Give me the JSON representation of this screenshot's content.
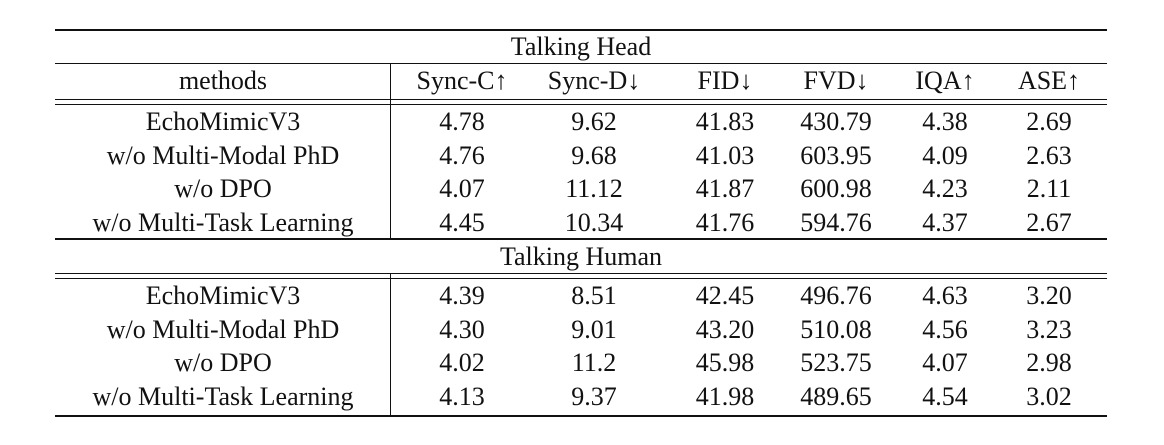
{
  "table": {
    "header": [
      "methods",
      "Sync-C↑",
      "Sync-D↓",
      "FID↓",
      "FVD↓",
      "IQA↑",
      "ASE↑"
    ],
    "sections": [
      {
        "title": "Talking Head",
        "rows": [
          [
            "EchoMimicV3",
            "4.78",
            "9.62",
            "41.83",
            "430.79",
            "4.38",
            "2.69"
          ],
          [
            "w/o Multi-Modal PhD",
            "4.76",
            "9.68",
            "41.03",
            "603.95",
            "4.09",
            "2.63"
          ],
          [
            "w/o DPO",
            "4.07",
            "11.12",
            "41.87",
            "600.98",
            "4.23",
            "2.11"
          ],
          [
            "w/o Multi-Task Learning",
            "4.45",
            "10.34",
            "41.76",
            "594.76",
            "4.37",
            "2.67"
          ]
        ]
      },
      {
        "title": "Talking Human",
        "rows": [
          [
            "EchoMimicV3",
            "4.39",
            "8.51",
            "42.45",
            "496.76",
            "4.63",
            "3.20"
          ],
          [
            "w/o Multi-Modal PhD",
            "4.30",
            "9.01",
            "43.20",
            "510.08",
            "4.56",
            "3.23"
          ],
          [
            "w/o DPO",
            "4.02",
            "11.2",
            "45.98",
            "523.75",
            "4.07",
            "2.98"
          ],
          [
            "w/o Multi-Task Learning",
            "4.13",
            "9.37",
            "41.98",
            "489.65",
            "4.54",
            "3.02"
          ]
        ]
      }
    ]
  }
}
